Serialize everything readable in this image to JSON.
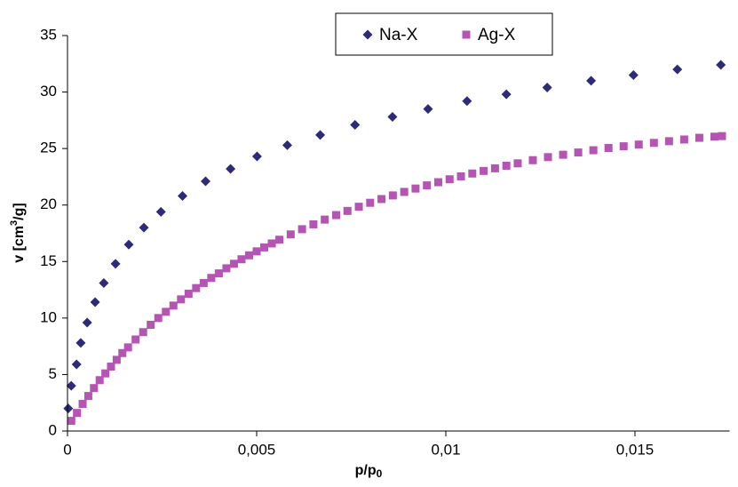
{
  "chart_data": {
    "type": "scatter",
    "x_label": {
      "text": "p/p",
      "sub": "0"
    },
    "y_label": {
      "pre": "v [cm",
      "sup": "3",
      "post": "/g]"
    },
    "xlim": [
      0,
      0.0175
    ],
    "ylim": [
      0,
      35
    ],
    "xticks": [
      0,
      {
        "value": 0.005,
        "label": "0,005"
      },
      {
        "value": 0.01,
        "label": "0,01"
      },
      {
        "value": 0.015,
        "label": "0,015"
      }
    ],
    "yticks": [
      0,
      5,
      10,
      15,
      20,
      25,
      30,
      35
    ],
    "grid": false,
    "legend": "top",
    "series": [
      {
        "name": "Na-X",
        "color": "#2e2a78",
        "marker": "diamond",
        "x": [
          2e-05,
          0.0001,
          0.00024,
          0.00035,
          0.00052,
          0.00073,
          0.00096,
          0.00127,
          0.00162,
          0.00202,
          0.00247,
          0.00304,
          0.00365,
          0.00431,
          0.00501,
          0.00581,
          0.00668,
          0.0076,
          0.00859,
          0.00953,
          0.01056,
          0.0116,
          0.01268,
          0.01384,
          0.01496,
          0.01612,
          0.01727
        ],
        "values": [
          2,
          4,
          5.9,
          7.8,
          9.6,
          11.4,
          13.1,
          14.8,
          16.5,
          18,
          19.4,
          20.8,
          22.1,
          23.2,
          24.3,
          25.3,
          26.2,
          27.1,
          27.8,
          28.5,
          29.2,
          29.8,
          30.4,
          31,
          31.5,
          32,
          32.4
        ]
      },
      {
        "name": "Ag-X",
        "color": "#b455b4",
        "marker": "square",
        "x": [
          0.0001,
          0.00025,
          0.0004,
          0.00055,
          0.0007,
          0.00085,
          0.001,
          0.00115,
          0.0013,
          0.00145,
          0.0016,
          0.0018,
          0.002,
          0.0022,
          0.0024,
          0.0026,
          0.0028,
          0.003,
          0.0032,
          0.0034,
          0.0036,
          0.0038,
          0.004,
          0.0042,
          0.0044,
          0.0046,
          0.0048,
          0.005,
          0.0052,
          0.0054,
          0.0056,
          0.0059,
          0.0062,
          0.0065,
          0.0068,
          0.0071,
          0.0074,
          0.0077,
          0.008,
          0.0083,
          0.0086,
          0.0089,
          0.0092,
          0.0095,
          0.0098,
          0.0101,
          0.0104,
          0.0107,
          0.011,
          0.0113,
          0.0116,
          0.0119,
          0.0123,
          0.0127,
          0.0131,
          0.0135,
          0.0139,
          0.0143,
          0.0147,
          0.0151,
          0.0155,
          0.0159,
          0.0163,
          0.0167,
          0.0171,
          0.0173
        ],
        "values": [
          0.9,
          1.6,
          2.4,
          3.1,
          3.8,
          4.5,
          5.1,
          5.7,
          6.3,
          6.9,
          7.4,
          8.1,
          8.75,
          9.4,
          10,
          10.55,
          11.1,
          11.65,
          12.15,
          12.65,
          13.1,
          13.55,
          13.95,
          14.4,
          14.8,
          15.2,
          15.55,
          15.9,
          16.25,
          16.6,
          16.93,
          17.4,
          17.86,
          18.29,
          18.71,
          19.11,
          19.48,
          19.85,
          20.2,
          20.53,
          20.85,
          21.16,
          21.46,
          21.74,
          22.02,
          22.28,
          22.54,
          22.79,
          23.02,
          23.25,
          23.48,
          23.69,
          23.97,
          24.24,
          24.45,
          24.65,
          24.85,
          25.05,
          25.2,
          25.35,
          25.5,
          25.65,
          25.8,
          25.95,
          26.05,
          26.1
        ]
      }
    ]
  }
}
